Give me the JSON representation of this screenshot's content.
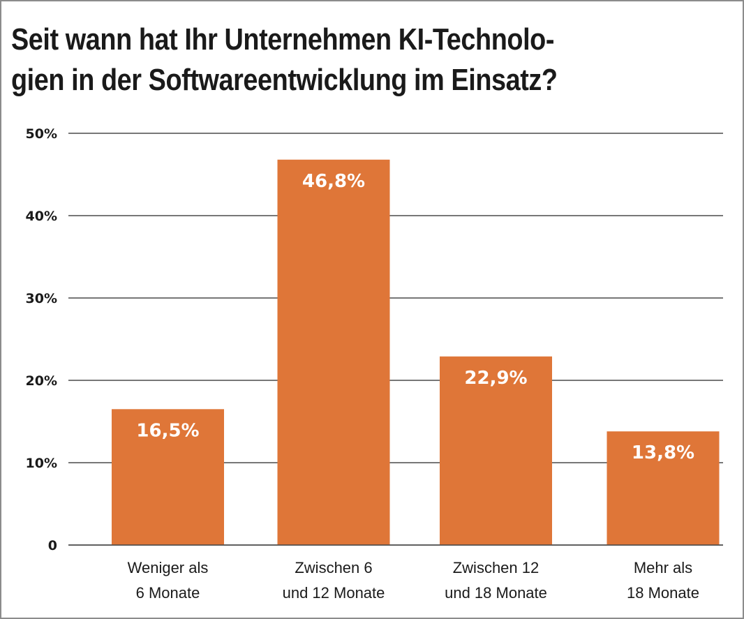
{
  "chart_data": {
    "type": "bar",
    "title": "Seit wann hat Ihr Unternehmen KI-Technologien in der Softwareentwicklung im Einsatz?",
    "title_lines": [
      "Seit wann hat Ihr Unternehmen KI-Technolo-",
      "gien in der Softwareentwicklung im Einsatz?"
    ],
    "categories": [
      [
        "Weniger als",
        "6 Monate"
      ],
      [
        "Zwischen 6",
        "und 12 Monate"
      ],
      [
        "Zwischen 12",
        "und 18 Monate"
      ],
      [
        "Mehr als",
        "18 Monate"
      ]
    ],
    "values": [
      16.5,
      46.8,
      22.9,
      13.8
    ],
    "data_labels": [
      "16,5%",
      "46,8%",
      "22,9%",
      "13,8%"
    ],
    "xlabel": "",
    "ylabel": "",
    "ylim": [
      0,
      50
    ],
    "yticks": [
      0,
      10,
      20,
      30,
      40,
      50
    ],
    "ytick_labels": [
      "0",
      "10%",
      "20%",
      "30%",
      "40%",
      "50%"
    ],
    "grid": true,
    "legend": "none",
    "colors": {
      "bar": "#df7638",
      "grid": "#4a4a4a",
      "border": "#8c8c8c",
      "text": "#1a1a1a"
    }
  }
}
